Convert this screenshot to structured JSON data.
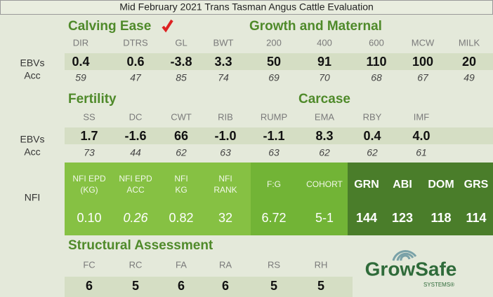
{
  "header": {
    "title": "Mid February 2021 Trans Tasman Angus Cattle Evaluation"
  },
  "section1": {
    "headings": [
      "Calving Ease",
      "Growth and Maternal"
    ],
    "row_labels": [
      "EBVs",
      "Acc"
    ],
    "columns": [
      "DIR",
      "DTRS",
      "GL",
      "BWT",
      "200",
      "400",
      "600",
      "MCW",
      "MILK"
    ],
    "ebvs": [
      "0.4",
      "0.6",
      "-3.8",
      "3.3",
      "50",
      "91",
      "110",
      "100",
      "20"
    ],
    "acc": [
      "59",
      "47",
      "85",
      "74",
      "69",
      "70",
      "68",
      "67",
      "49"
    ]
  },
  "section2": {
    "headings": [
      "Fertility",
      "Carcase"
    ],
    "row_labels": [
      "EBVs",
      "Acc"
    ],
    "columns": [
      "SS",
      "DC",
      "CWT",
      "RIB",
      "RUMP",
      "EMA",
      "RBY",
      "IMF"
    ],
    "ebvs": [
      "1.7",
      "-1.6",
      "66",
      "-1.0",
      "-1.1",
      "8.3",
      "0.4",
      "4.0"
    ],
    "acc": [
      "73",
      "44",
      "62",
      "63",
      "63",
      "62",
      "62",
      "61"
    ]
  },
  "nfi": {
    "label": "NFI",
    "columns": [
      [
        "NFI EPD",
        "(KG)"
      ],
      [
        "NFI EPD",
        "ACC"
      ],
      [
        "NFI",
        "KG"
      ],
      [
        "NFI",
        "RANK"
      ],
      [
        "F:G"
      ],
      [
        "COHORT"
      ]
    ],
    "values": [
      "0.10",
      "0.26",
      "0.82",
      "32",
      "6.72",
      "5-1"
    ],
    "index_columns": [
      "GRN",
      "ABI",
      "DOM",
      "GRS"
    ],
    "index_values": [
      "144",
      "123",
      "118",
      "114"
    ]
  },
  "structural": {
    "heading": "Structural Assessment",
    "columns": [
      "FC",
      "RC",
      "FA",
      "RA",
      "RS",
      "RH"
    ],
    "values": [
      "6",
      "5",
      "6",
      "6",
      "5",
      "5"
    ]
  },
  "logo": {
    "name": "GrowSafe",
    "sub": "SYSTEMS®"
  }
}
